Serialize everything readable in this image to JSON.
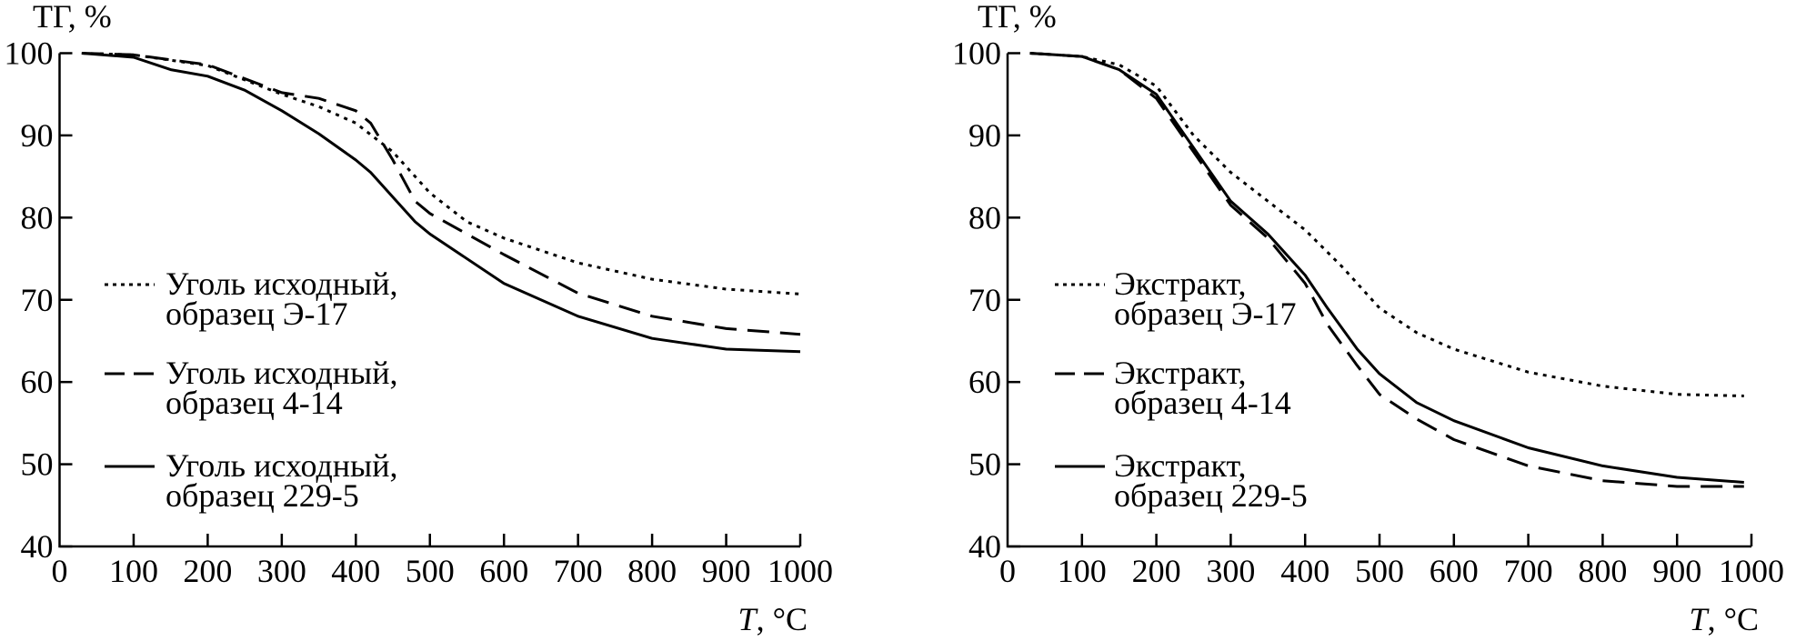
{
  "chart_data": [
    {
      "type": "line",
      "ylabel": "ТГ, %",
      "xlabel_italic": "T",
      "xlabel_rest": ", °C",
      "xlim": [
        0,
        1000
      ],
      "ylim": [
        40,
        100
      ],
      "xticks": [
        0,
        100,
        200,
        300,
        400,
        500,
        600,
        700,
        800,
        900,
        1000
      ],
      "yticks": [
        40,
        50,
        60,
        70,
        80,
        90,
        100
      ],
      "grid": false,
      "legend_placement": "center-left",
      "series": [
        {
          "name_line1": "Уголь исходный,",
          "name_line2": "образец Э-17",
          "style": "dotted",
          "x": [
            30,
            100,
            200,
            300,
            350,
            400,
            450,
            500,
            550,
            600,
            700,
            800,
            900,
            1000
          ],
          "y": [
            100,
            99.8,
            98.5,
            95,
            93.5,
            91.5,
            88,
            83,
            79.5,
            77.5,
            74.5,
            72.5,
            71.3,
            70.7
          ]
        },
        {
          "name_line1": "Уголь исходный,",
          "name_line2": "образец 4-14",
          "style": "dashed",
          "x": [
            30,
            100,
            200,
            300,
            350,
            400,
            420,
            450,
            480,
            500,
            600,
            700,
            800,
            900,
            1000
          ],
          "y": [
            100,
            99.8,
            98.6,
            95.2,
            94.5,
            93,
            91.5,
            87,
            82,
            80.5,
            75.5,
            70.8,
            68,
            66.5,
            65.8
          ]
        },
        {
          "name_line1": "Уголь исходный,",
          "name_line2": "образец 229-5",
          "style": "solid",
          "x": [
            30,
            100,
            150,
            200,
            250,
            300,
            350,
            400,
            420,
            450,
            480,
            500,
            600,
            700,
            800,
            900,
            1000
          ],
          "y": [
            100,
            99.5,
            98,
            97.2,
            95.5,
            93,
            90.2,
            87,
            85.5,
            82.5,
            79.5,
            78,
            72,
            68,
            65.3,
            64,
            63.7
          ]
        }
      ]
    },
    {
      "type": "line",
      "ylabel": "ТГ, %",
      "xlabel_italic": "T",
      "xlabel_rest": ", °C",
      "xlim": [
        0,
        1000
      ],
      "ylim": [
        40,
        100
      ],
      "xticks": [
        0,
        100,
        200,
        300,
        400,
        500,
        600,
        700,
        800,
        900,
        1000
      ],
      "yticks": [
        40,
        50,
        60,
        70,
        80,
        90,
        100
      ],
      "grid": false,
      "legend_placement": "center-left",
      "series": [
        {
          "name_line1": "Экстракт,",
          "name_line2": "образец Э-17",
          "style": "dotted",
          "x": [
            30,
            100,
            150,
            200,
            250,
            300,
            350,
            400,
            450,
            500,
            550,
            600,
            700,
            800,
            900,
            990
          ],
          "y": [
            100,
            99.6,
            98.6,
            96,
            90,
            85.5,
            82,
            78.5,
            74,
            69,
            66,
            64,
            61.2,
            59.5,
            58.5,
            58.3
          ]
        },
        {
          "name_line1": "Экстракт,",
          "name_line2": "образец 4-14",
          "style": "dashed",
          "x": [
            30,
            100,
            150,
            200,
            250,
            300,
            350,
            400,
            430,
            470,
            500,
            550,
            600,
            700,
            800,
            900,
            990
          ],
          "y": [
            100,
            99.6,
            98,
            94.5,
            88,
            81.5,
            77.5,
            72,
            67,
            62,
            58.5,
            55.5,
            53,
            49.8,
            48,
            47.3,
            47.3
          ]
        },
        {
          "name_line1": "Экстракт,",
          "name_line2": "образец 229-5",
          "style": "solid",
          "x": [
            30,
            100,
            150,
            200,
            250,
            300,
            350,
            400,
            430,
            470,
            500,
            550,
            600,
            700,
            800,
            900,
            990
          ],
          "y": [
            100,
            99.6,
            98,
            95,
            88.5,
            82,
            78,
            73,
            69,
            64,
            61,
            57.5,
            55.3,
            52,
            49.8,
            48.4,
            47.8
          ]
        }
      ]
    }
  ]
}
